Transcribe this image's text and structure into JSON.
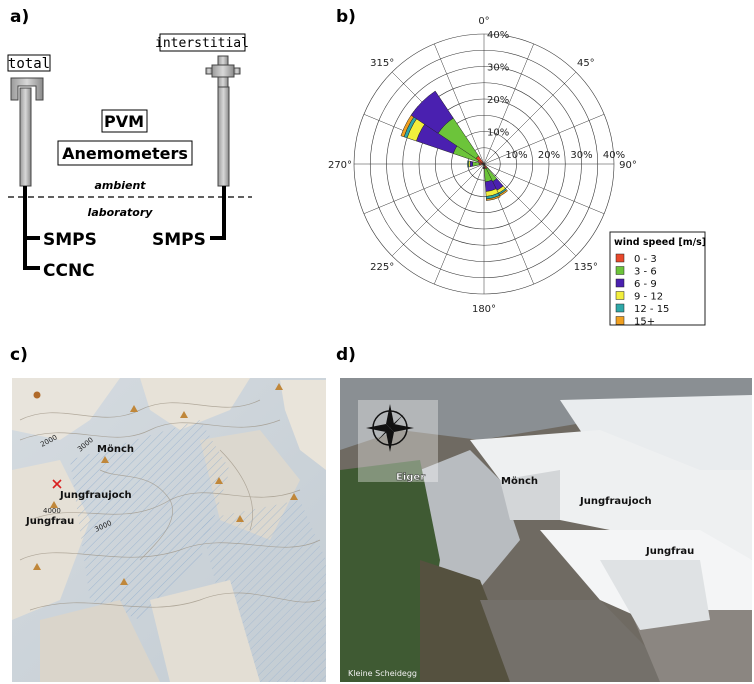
{
  "panels": {
    "a": "a)",
    "b": "b)",
    "c": "c)",
    "d": "d)"
  },
  "schematic": {
    "inlets": {
      "total": "total",
      "interstitial": "interstitial"
    },
    "instruments": {
      "pvm": "PVM",
      "anemometers": "Anemometers"
    },
    "zones": {
      "ambient": "ambient",
      "laboratory": "laboratory"
    },
    "lab_instruments": {
      "smps_total": "SMPS",
      "ccnc": "CCNC",
      "smps_interstitial": "SMPS"
    }
  },
  "chart_data": {
    "type": "polar-stacked-bar",
    "direction_labels": [
      "0°",
      "45°",
      "90°",
      "135°",
      "180°",
      "225°",
      "270°",
      "315°"
    ],
    "radial_labels": [
      "10%",
      "20%",
      "30%",
      "40%"
    ],
    "radial_max": 40,
    "legend": {
      "title": "wind speed [m/s]",
      "placement": "bottom-right",
      "classes": [
        {
          "label": "0 - 3",
          "color": "#e8482b"
        },
        {
          "label": "3 - 6",
          "color": "#6cc43a"
        },
        {
          "label": "6 - 9",
          "color": "#4a20b0"
        },
        {
          "label": "9 - 12",
          "color": "#f2ee3c"
        },
        {
          "label": "12 - 15",
          "color": "#2ea8a8"
        },
        {
          "label": "15+",
          "color": "#f0a020"
        }
      ]
    },
    "sectors": [
      {
        "direction": 150,
        "values": [
          1.5,
          4.5,
          3.0,
          1.0,
          0.5,
          0.5
        ]
      },
      {
        "direction": 165,
        "values": [
          1.5,
          4.0,
          3.0,
          1.5,
          0.8,
          0.5
        ]
      },
      {
        "direction": 180,
        "values": [
          0.5,
          0.5,
          0.3,
          0.2,
          0.0,
          0.0
        ]
      },
      {
        "direction": 270,
        "values": [
          1.5,
          2.0,
          0.8,
          0.5,
          0.3,
          0.0
        ]
      },
      {
        "direction": 300,
        "values": [
          2.0,
          8.0,
          12.0,
          3.0,
          1.0,
          1.0
        ]
      },
      {
        "direction": 315,
        "values": [
          3.0,
          14.0,
          10.0,
          0.0,
          0.0,
          0.0
        ]
      }
    ]
  },
  "map": {
    "labels": {
      "monch": "Mönch",
      "jungfraujoch": "Jungfraujoch",
      "jungfrau": "Jungfrau"
    },
    "contours": {
      "c1": "2000",
      "c2": "3000",
      "c3": "4000",
      "c4": "3000"
    }
  },
  "photo": {
    "labels": {
      "eiger": "Eiger",
      "monch": "Mönch",
      "jungfraujoch": "Jungfraujoch",
      "jungfrau": "Jungfrau",
      "kleine": "Kleine Scheidegg"
    }
  }
}
